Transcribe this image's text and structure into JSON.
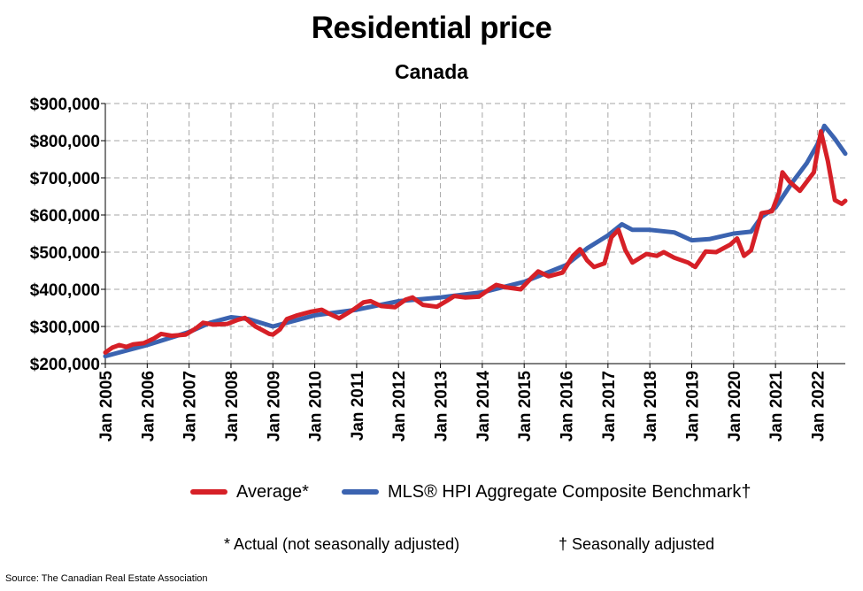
{
  "chart_data": {
    "type": "line",
    "title": "Residential price",
    "subtitle": "Canada",
    "ylim": [
      200000,
      900000
    ],
    "yticks": [
      200000,
      300000,
      400000,
      500000,
      600000,
      700000,
      800000,
      900000
    ],
    "ytick_labels": [
      "$200,000",
      "$300,000",
      "$400,000",
      "$500,000",
      "$600,000",
      "$700,000",
      "$800,000",
      "$900,000"
    ],
    "xlim": [
      "2005-01",
      "2022-09"
    ],
    "xtick_labels": [
      "Jan 2005",
      "Jan 2006",
      "Jan 2007",
      "Jan 2008",
      "Jan 2009",
      "Jan 2010",
      "Jan 2011",
      "Jan 2012",
      "Jan 2013",
      "Jan 2014",
      "Jan 2015",
      "Jan 2016",
      "Jan 2017",
      "Jan 2018",
      "Jan 2019",
      "Jan 2020",
      "Jan 2021",
      "Jan 2022"
    ],
    "grid": true,
    "legend_position": "bottom",
    "series": [
      {
        "name": "Average*",
        "color": "#d62027",
        "points": [
          [
            "2005-01",
            230000
          ],
          [
            "2005-03",
            243000
          ],
          [
            "2005-05",
            250000
          ],
          [
            "2005-07",
            245000
          ],
          [
            "2005-09",
            252000
          ],
          [
            "2005-12",
            255000
          ],
          [
            "2006-03",
            268000
          ],
          [
            "2006-05",
            280000
          ],
          [
            "2006-08",
            275000
          ],
          [
            "2006-12",
            278000
          ],
          [
            "2007-03",
            295000
          ],
          [
            "2007-05",
            310000
          ],
          [
            "2007-08",
            305000
          ],
          [
            "2007-12",
            307000
          ],
          [
            "2008-03",
            318000
          ],
          [
            "2008-05",
            323000
          ],
          [
            "2008-08",
            300000
          ],
          [
            "2008-10",
            290000
          ],
          [
            "2008-12",
            280000
          ],
          [
            "2009-01",
            278000
          ],
          [
            "2009-03",
            292000
          ],
          [
            "2009-05",
            320000
          ],
          [
            "2009-08",
            330000
          ],
          [
            "2009-12",
            340000
          ],
          [
            "2010-03",
            345000
          ],
          [
            "2010-05",
            335000
          ],
          [
            "2010-08",
            322000
          ],
          [
            "2010-12",
            345000
          ],
          [
            "2011-03",
            365000
          ],
          [
            "2011-05",
            368000
          ],
          [
            "2011-08",
            355000
          ],
          [
            "2011-12",
            352000
          ],
          [
            "2012-03",
            372000
          ],
          [
            "2012-05",
            378000
          ],
          [
            "2012-08",
            358000
          ],
          [
            "2012-12",
            353000
          ],
          [
            "2013-03",
            370000
          ],
          [
            "2013-05",
            382000
          ],
          [
            "2013-08",
            378000
          ],
          [
            "2013-12",
            380000
          ],
          [
            "2014-03",
            400000
          ],
          [
            "2014-05",
            412000
          ],
          [
            "2014-08",
            405000
          ],
          [
            "2014-12",
            400000
          ],
          [
            "2015-03",
            430000
          ],
          [
            "2015-05",
            448000
          ],
          [
            "2015-08",
            435000
          ],
          [
            "2015-12",
            445000
          ],
          [
            "2016-03",
            490000
          ],
          [
            "2016-05",
            508000
          ],
          [
            "2016-07",
            478000
          ],
          [
            "2016-09",
            460000
          ],
          [
            "2016-12",
            470000
          ],
          [
            "2017-02",
            540000
          ],
          [
            "2017-04",
            560000
          ],
          [
            "2017-06",
            505000
          ],
          [
            "2017-08",
            472000
          ],
          [
            "2017-12",
            495000
          ],
          [
            "2018-03",
            490000
          ],
          [
            "2018-05",
            500000
          ],
          [
            "2018-08",
            485000
          ],
          [
            "2018-12",
            472000
          ],
          [
            "2019-02",
            460000
          ],
          [
            "2019-05",
            502000
          ],
          [
            "2019-08",
            500000
          ],
          [
            "2019-12",
            520000
          ],
          [
            "2020-02",
            537000
          ],
          [
            "2020-04",
            490000
          ],
          [
            "2020-06",
            505000
          ],
          [
            "2020-09",
            605000
          ],
          [
            "2020-12",
            610000
          ],
          [
            "2021-02",
            660000
          ],
          [
            "2021-03",
            715000
          ],
          [
            "2021-05",
            690000
          ],
          [
            "2021-08",
            665000
          ],
          [
            "2021-12",
            715000
          ],
          [
            "2022-02",
            825000
          ],
          [
            "2022-04",
            745000
          ],
          [
            "2022-06",
            640000
          ],
          [
            "2022-08",
            630000
          ],
          [
            "2022-09",
            638000
          ]
        ]
      },
      {
        "name": "MLS® HPI Aggregate Composite Benchmark†",
        "color": "#3b63b0",
        "points": [
          [
            "2005-01",
            220000
          ],
          [
            "2006-01",
            250000
          ],
          [
            "2007-01",
            285000
          ],
          [
            "2007-07",
            310000
          ],
          [
            "2008-01",
            325000
          ],
          [
            "2008-06",
            320000
          ],
          [
            "2009-01",
            300000
          ],
          [
            "2010-01",
            330000
          ],
          [
            "2011-01",
            345000
          ],
          [
            "2012-01",
            368000
          ],
          [
            "2013-01",
            378000
          ],
          [
            "2014-01",
            392000
          ],
          [
            "2015-01",
            420000
          ],
          [
            "2016-01",
            465000
          ],
          [
            "2016-07",
            510000
          ],
          [
            "2017-01",
            545000
          ],
          [
            "2017-05",
            575000
          ],
          [
            "2017-08",
            560000
          ],
          [
            "2018-01",
            560000
          ],
          [
            "2018-08",
            553000
          ],
          [
            "2019-01",
            532000
          ],
          [
            "2019-06",
            535000
          ],
          [
            "2020-01",
            550000
          ],
          [
            "2020-06",
            555000
          ],
          [
            "2020-09",
            595000
          ],
          [
            "2021-01",
            620000
          ],
          [
            "2021-06",
            690000
          ],
          [
            "2021-10",
            740000
          ],
          [
            "2022-01",
            790000
          ],
          [
            "2022-03",
            840000
          ],
          [
            "2022-06",
            805000
          ],
          [
            "2022-09",
            765000
          ]
        ]
      }
    ]
  },
  "notes": {
    "actual": "* Actual (not seasonally adjusted)",
    "seasonal": "† Seasonally adjusted"
  },
  "source": "Source: The Canadian Real Estate Association"
}
